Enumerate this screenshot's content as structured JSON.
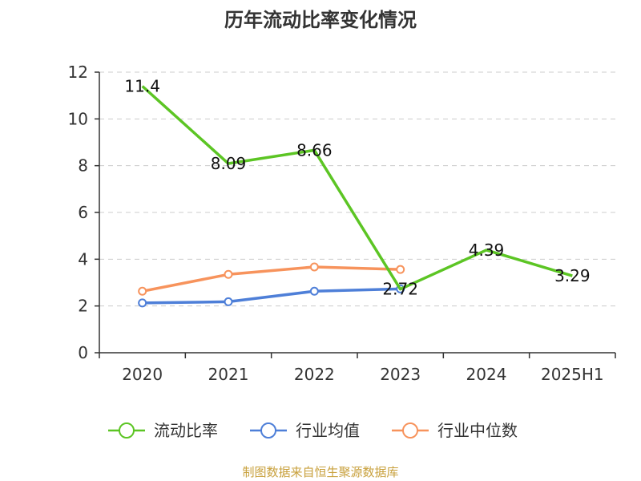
{
  "chart_data": {
    "type": "line",
    "title": "历年流动比率变化情况",
    "categories": [
      "2020",
      "2021",
      "2022",
      "2023",
      "2024",
      "2025H1"
    ],
    "ylim": [
      0,
      12
    ],
    "yticks": [
      "0",
      "2",
      "4",
      "6",
      "8",
      "10",
      "12"
    ],
    "grid": true,
    "legend_position": "bottom",
    "series": [
      {
        "name": "流动比率",
        "color": "#5cc524",
        "values": [
          11.4,
          8.09,
          8.66,
          2.72,
          4.39,
          3.29
        ],
        "labels": [
          "11.4",
          "8.09",
          "8.66",
          "2.72",
          "4.39",
          "3.29"
        ],
        "show_markers": false
      },
      {
        "name": "行业均值",
        "color": "#4e7fd8",
        "values": [
          2.13,
          2.18,
          2.63,
          2.73,
          null,
          null
        ],
        "labels": [],
        "show_markers": true
      },
      {
        "name": "行业中位数",
        "color": "#f7935c",
        "values": [
          2.63,
          3.35,
          3.67,
          3.56,
          null,
          null
        ],
        "labels": [],
        "show_markers": true
      }
    ]
  },
  "source_text": "制图数据来自恒生聚源数据库"
}
